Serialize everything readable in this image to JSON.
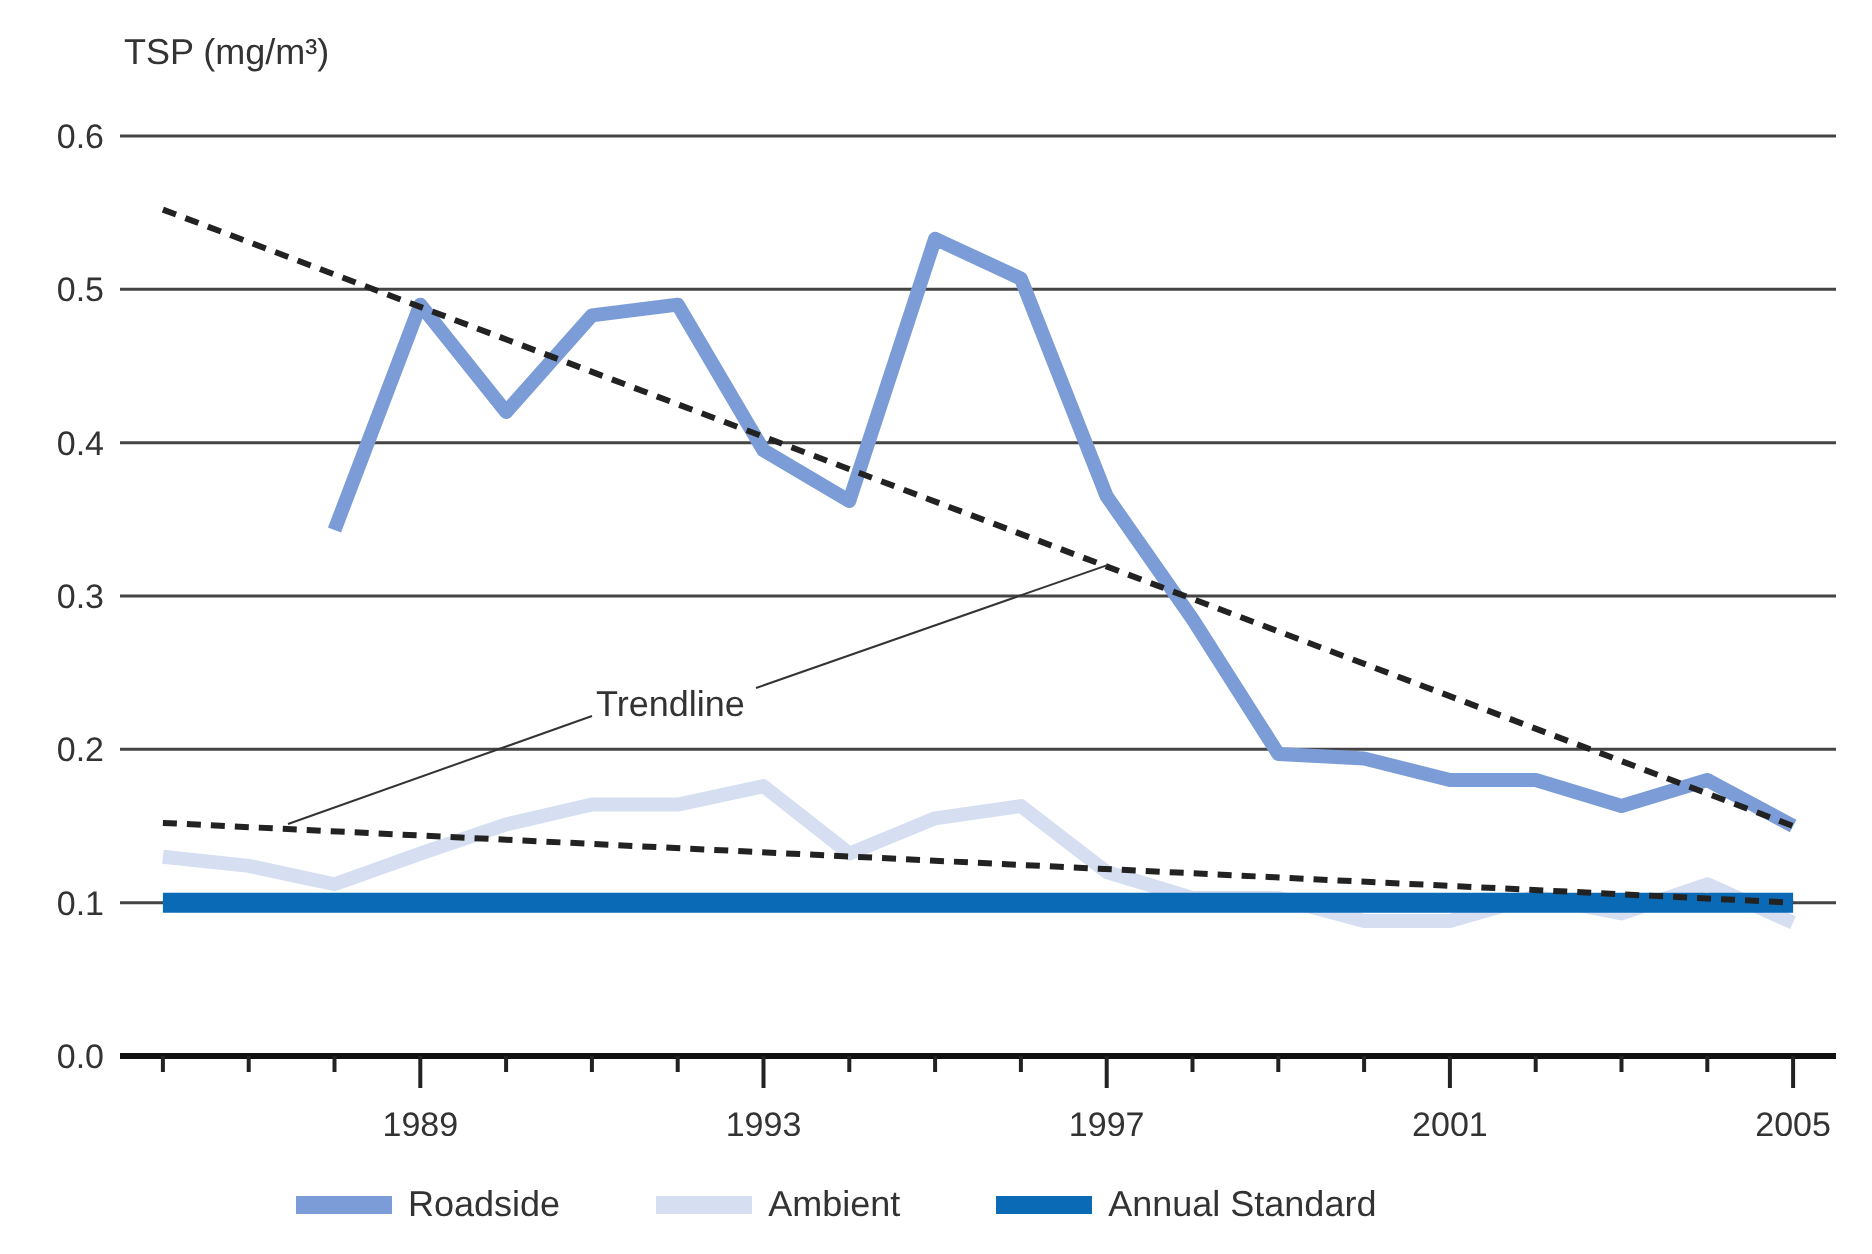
{
  "chart_data": {
    "type": "line",
    "ylabel": "TSP (mg/m³)",
    "xlim": [
      1985.5,
      2005.5
    ],
    "xticks": [
      {
        "value": 1986,
        "label": null
      },
      {
        "value": 1987,
        "label": null
      },
      {
        "value": 1988,
        "label": null
      },
      1989,
      {
        "value": 1990,
        "label": null
      },
      {
        "value": 1991,
        "label": null
      },
      {
        "value": 1992,
        "label": null
      },
      1993,
      {
        "value": 1994,
        "label": null
      },
      {
        "value": 1995,
        "label": null
      },
      {
        "value": 1996,
        "label": null
      },
      1997,
      {
        "value": 1998,
        "label": null
      },
      {
        "value": 1999,
        "label": null
      },
      {
        "value": 2000,
        "label": null
      },
      2001,
      {
        "value": 2002,
        "label": null
      },
      {
        "value": 2003,
        "label": null
      },
      {
        "value": 2004,
        "label": null
      },
      2005
    ],
    "ylim": [
      0,
      0.6
    ],
    "yticks": [
      {
        "value": 0,
        "label": "0.0"
      },
      0.1,
      0.2,
      0.3,
      0.4,
      0.5,
      0.6
    ],
    "grid": "y",
    "legend": "bottom",
    "marker": "none",
    "annotations": [
      {
        "text": "Trendline",
        "x": 1997,
        "y": 0.32
      }
    ],
    "series": [
      {
        "name": "Roadside",
        "color": "#7b9cd6",
        "x": [
          1988,
          1989,
          1990,
          1991,
          1992,
          1993,
          1994,
          1995,
          1996,
          1997,
          1998,
          1999,
          2000,
          2001,
          2002,
          2003,
          2004,
          2005
        ],
        "values": [
          0.343,
          0.49,
          0.42,
          0.483,
          0.49,
          0.395,
          0.362,
          0.533,
          0.507,
          0.365,
          0.285,
          0.197,
          0.194,
          0.18,
          0.18,
          0.163,
          0.18,
          0.15
        ]
      },
      {
        "name": "Ambient",
        "color": "#d6dff2",
        "x": [
          1986,
          1987,
          1988,
          1989,
          1990,
          1991,
          1992,
          1993,
          1994,
          1995,
          1996,
          1997,
          1998,
          1999,
          2000,
          2001,
          2002,
          2003,
          2004,
          2005
        ],
        "values": [
          0.13,
          0.124,
          0.112,
          0.132,
          0.151,
          0.164,
          0.164,
          0.176,
          0.132,
          0.155,
          0.163,
          0.12,
          0.103,
          0.103,
          0.088,
          0.088,
          0.104,
          0.093,
          0.112,
          0.087
        ]
      },
      {
        "name": "Annual Standard",
        "color": "#0a6ab6",
        "x": [
          1986,
          2005
        ],
        "values": [
          0.1,
          0.1
        ]
      },
      {
        "type": "line",
        "color": "#222222",
        "line_style": "dashed",
        "x": [
          1986,
          2005
        ],
        "values": [
          0.552,
          0.15
        ]
      },
      {
        "type": "line",
        "color": "#222222",
        "line_style": "dashed",
        "x": [
          1986,
          2005
        ],
        "values": [
          0.152,
          0.1
        ]
      }
    ]
  }
}
